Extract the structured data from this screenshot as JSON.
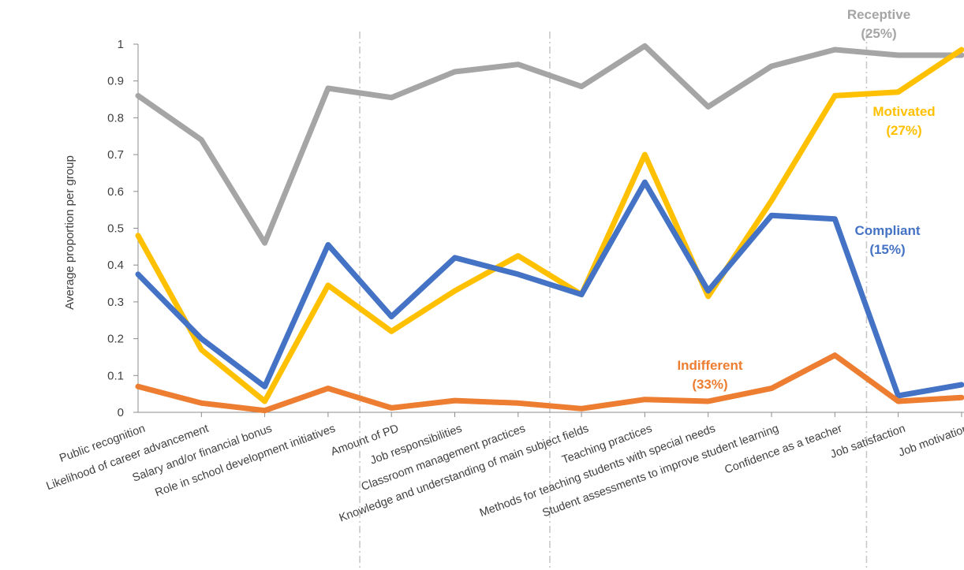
{
  "chart_data": {
    "type": "line",
    "ylabel": "Average proportion per group",
    "ylim": [
      0,
      1
    ],
    "yticks": [
      "0",
      "0.1",
      "0.2",
      "0.3",
      "0.4",
      "0.5",
      "0.6",
      "0.7",
      "0.8",
      "0.9",
      "1"
    ],
    "grid": false,
    "group_separators_after_category": [
      3,
      6,
      11
    ],
    "categories": [
      "Public recognition",
      "Likelihood of career advancement",
      "Salary and/or financial bonus",
      "Role in school development initiatives",
      "Amount of PD",
      "Job responsibilities",
      "Classroom management practices",
      "Knowledge and understanding of main subject fields",
      "Teaching practices",
      "Methods for teaching students with special needs",
      "Student assessments to improve student learning",
      "Confidence as a teacher",
      "Job satisfaction",
      "Job motivation"
    ],
    "series": [
      {
        "name": "Receptive",
        "share": "(25%)",
        "color": "#a5a5a5",
        "values": [
          0.86,
          0.74,
          0.46,
          0.88,
          0.855,
          0.925,
          0.945,
          0.885,
          0.995,
          0.83,
          0.94,
          0.985,
          0.97,
          0.97
        ]
      },
      {
        "name": "Motivated",
        "share": "(27%)",
        "color": "#ffc000",
        "values": [
          0.48,
          0.17,
          0.03,
          0.345,
          0.22,
          0.33,
          0.425,
          0.32,
          0.7,
          0.315,
          0.575,
          0.86,
          0.87,
          0.985
        ]
      },
      {
        "name": "Compliant",
        "share": "(15%)",
        "color": "#4472c4",
        "values": [
          0.375,
          0.2,
          0.07,
          0.455,
          0.26,
          0.42,
          0.375,
          0.32,
          0.625,
          0.33,
          0.535,
          0.525,
          0.045,
          0.075
        ]
      },
      {
        "name": "Indifferent",
        "share": "(33%)",
        "color": "#ed7d31",
        "values": [
          0.07,
          0.025,
          0.005,
          0.065,
          0.012,
          0.032,
          0.025,
          0.01,
          0.035,
          0.03,
          0.065,
          0.155,
          0.03,
          0.04
        ]
      }
    ]
  }
}
